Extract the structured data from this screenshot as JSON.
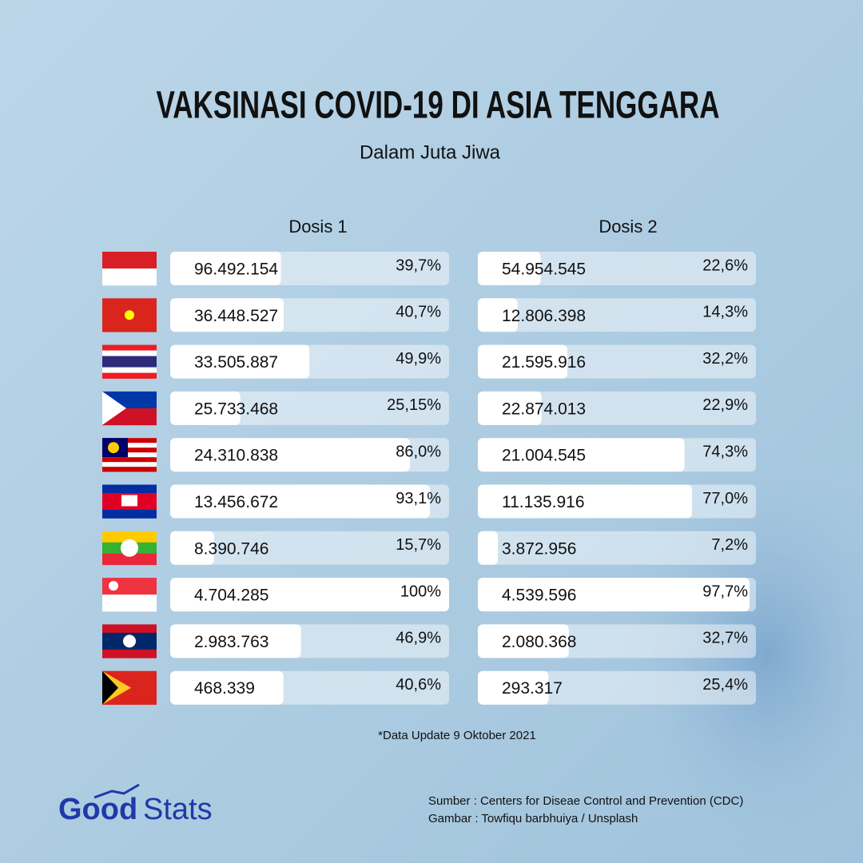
{
  "header": {
    "title": "VAKSINASI COVID-19 DI ASIA TENGGARA",
    "subtitle": "Dalam Juta Jiwa"
  },
  "chart_data": [
    {
      "type": "bar",
      "title": "Dosis 1",
      "xlim": [
        0,
        100
      ],
      "categories": [
        null,
        null,
        null,
        null,
        null,
        null,
        null,
        null,
        null,
        null
      ],
      "count_labels": [
        "96.492.154",
        "36.448.527",
        "33.505.887",
        "25.733.468",
        "24.310.838",
        "13.456.672",
        "8.390.746",
        "4.704.285",
        "2.983.763",
        "468.339"
      ],
      "values": [
        39.7,
        40.7,
        49.9,
        25.15,
        86.0,
        93.1,
        15.7,
        100,
        46.9,
        40.6
      ],
      "value_labels": [
        "39,7%",
        "40,7%",
        "49,9%",
        "25,15%",
        "86,0%",
        "93,1%",
        "15,7%",
        "100%",
        "46,9%",
        "40,6%"
      ],
      "color": "#ffffff"
    },
    {
      "type": "bar",
      "title": "Dosis 2",
      "xlim": [
        0,
        100
      ],
      "categories": [
        null,
        null,
        null,
        null,
        null,
        null,
        null,
        null,
        null,
        null
      ],
      "count_labels": [
        "54.954.545",
        "12.806.398",
        "21.595.916",
        "22.874.013",
        "21.004.545",
        "11.135.916",
        "3.872.956",
        "4.539.596",
        "2.080.368",
        "293.317"
      ],
      "values": [
        22.6,
        14.3,
        32.2,
        22.9,
        74.3,
        77.0,
        7.2,
        97.7,
        32.7,
        25.4
      ],
      "value_labels": [
        "22,6%",
        "14,3%",
        "32,2%",
        "22,9%",
        "74,3%",
        "77,0%",
        "7,2%",
        "97,7%",
        "32,7%",
        "25,4%"
      ],
      "color": "#ffffff"
    }
  ],
  "footnote": "*Data Update 9 Oktober 2021",
  "logo": {
    "part1": "Good",
    "part2": "Stats"
  },
  "sources": [
    "Sumber : Centers for Diseae Control and Prevention (CDC)",
    "Gambar : Towfiqu barbhuiya / Unsplash"
  ]
}
